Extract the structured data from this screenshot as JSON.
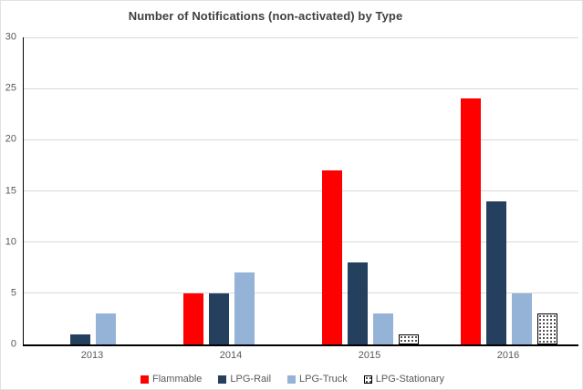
{
  "chart_data": {
    "type": "bar",
    "title": "Number of Notifications (non-activated) by Type",
    "categories": [
      "2013",
      "2014",
      "2015",
      "2016"
    ],
    "series": [
      {
        "name": "Flammable",
        "color": "#ff0000",
        "pattern": "solid",
        "values": [
          0,
          5,
          17,
          24
        ]
      },
      {
        "name": "LPG-Rail",
        "color": "#24405e",
        "pattern": "solid",
        "values": [
          1,
          5,
          8,
          14
        ]
      },
      {
        "name": "LPG-Truck",
        "color": "#95b3d7",
        "pattern": "solid",
        "values": [
          3,
          7,
          3,
          5
        ]
      },
      {
        "name": "LPG-Stationary",
        "color": "#ffffff",
        "pattern": "dotted",
        "values": [
          0,
          0,
          1,
          3
        ]
      }
    ],
    "xlabel": "",
    "ylabel": "",
    "ylim": [
      0,
      30
    ],
    "yticks": [
      0,
      5,
      10,
      15,
      20,
      25,
      30
    ],
    "grid": true,
    "gridline_values": [
      5,
      10,
      15,
      20,
      25,
      30
    ],
    "legend_position": "bottom-center",
    "colors": {
      "grid": "#d9d9d9",
      "axis": "#000000",
      "tick_text": "#595959",
      "title_text": "#404040",
      "background": "#ffffff"
    }
  }
}
